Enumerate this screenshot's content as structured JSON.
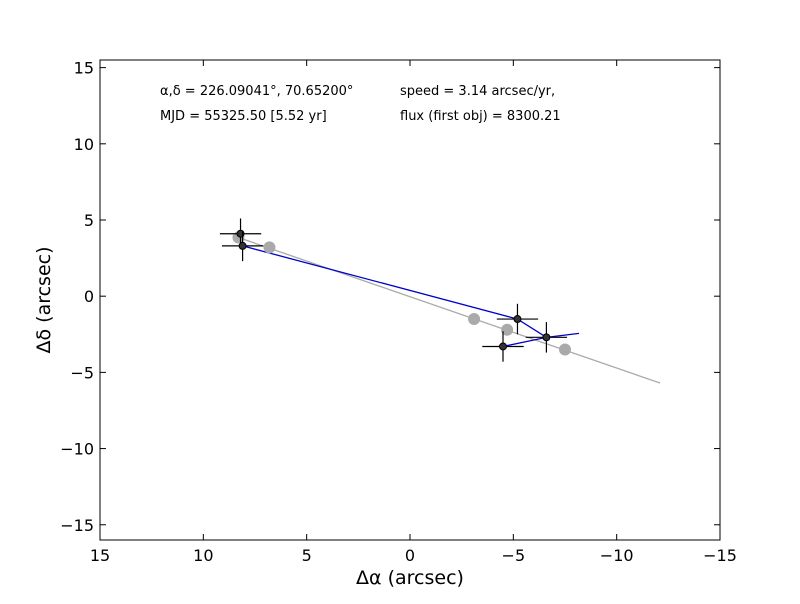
{
  "chart_data": {
    "type": "scatter",
    "xlabel": "Δα (arcsec)",
    "ylabel": "Δδ (arcsec)",
    "xlim": [
      15,
      -15
    ],
    "ylim": [
      -16,
      15.5
    ],
    "x_ticks": [
      15,
      10,
      5,
      0,
      -5,
      -10,
      -15
    ],
    "y_ticks": [
      15,
      10,
      5,
      0,
      -5,
      -10,
      -15
    ],
    "x_tick_labels": [
      "15",
      "10",
      "5",
      "0",
      "−5",
      "−10",
      "−15"
    ],
    "y_tick_labels": [
      "15",
      "10",
      "5",
      "0",
      "−5",
      "−10",
      "−15"
    ],
    "grid": false,
    "annotations": [
      "α,δ = 226.09041°, 70.65200°",
      "speed = 3.14 arcsec/yr,",
      "MJD = 55325.50 [5.52 yr]",
      "flux (first obj) = 8300.21"
    ],
    "colors": {
      "observed": "#333333",
      "fit": "#aaaaaa",
      "connect": "#0000cc"
    },
    "series": [
      {
        "kind": "observed",
        "points": [
          {
            "x": 8.2,
            "y": 4.1,
            "xerr": 1.0,
            "yerr": 1.0
          },
          {
            "x": 8.1,
            "y": 3.3,
            "xerr": 1.0,
            "yerr": 1.0
          },
          {
            "x": -5.2,
            "y": -1.5,
            "xerr": 1.0,
            "yerr": 1.0
          },
          {
            "x": -6.6,
            "y": -2.7,
            "xerr": 1.0,
            "yerr": 1.0
          },
          {
            "x": -4.5,
            "y": -3.3,
            "xerr": 1.0,
            "yerr": 1.0
          }
        ]
      },
      {
        "kind": "fit",
        "points": [
          {
            "x": 8.3,
            "y": 3.85
          },
          {
            "x": 6.8,
            "y": 3.2
          },
          {
            "x": -3.1,
            "y": -1.5
          },
          {
            "x": -4.7,
            "y": -2.2
          },
          {
            "x": -7.5,
            "y": -3.5
          }
        ]
      }
    ],
    "fit_line": {
      "x": [
        8.3,
        -12.1
      ],
      "y": [
        3.85,
        -5.7
      ]
    }
  }
}
